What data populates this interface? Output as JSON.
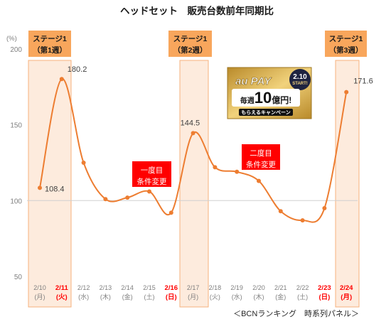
{
  "colors": {
    "series_line": "#ed7d31",
    "stage_box": "#f8a65c",
    "stage_band": "#fdebdd",
    "stage_band_border": "#f6b27c",
    "condition_box": "#ff0000",
    "red_label": "#ff0000",
    "axis_text": "#7f7f7f",
    "reference_line": "#d0d0d0"
  },
  "stages": [
    {
      "label": "ステージ1",
      "week": "（第1週）"
    },
    {
      "label": "ステージ1",
      "week": "（第2週）"
    },
    {
      "label": "ステージ1",
      "week": "（第3週）"
    }
  ],
  "condition_changes": [
    {
      "order": "一度目",
      "text": "条件変更"
    },
    {
      "order": "二度目",
      "text": "条件変更"
    }
  ],
  "promo_banner": {
    "brand": "au PAY",
    "start_date": "2.10",
    "start_text": "START!",
    "headline_prefix": "毎週",
    "headline_number": "10",
    "headline_suffix": "億円!",
    "tagline": "もらえるキャンペーン"
  },
  "source_note": "＜BCNランキング　時系列パネル＞",
  "chart_data": {
    "type": "line",
    "title": "ヘッドセット　販売台数前年同期比",
    "ylabel": "(%)",
    "ylim": [
      50,
      200
    ],
    "yticks": [
      200,
      150,
      100,
      50
    ],
    "reference_line": 100,
    "grid": false,
    "categories": [
      "2/10",
      "2/11",
      "2/12",
      "2/13",
      "2/14",
      "2/15",
      "2/16",
      "2/17",
      "2/18",
      "2/19",
      "2/20",
      "2/21",
      "2/22",
      "2/23",
      "2/24"
    ],
    "weekdays": [
      "(月)",
      "(火)",
      "(水)",
      "(木)",
      "(金)",
      "(土)",
      "(日)",
      "(月)",
      "(火)",
      "(水)",
      "(木)",
      "(金)",
      "(土)",
      "(日)",
      "(月)"
    ],
    "red_label_indices": [
      1,
      6,
      13,
      14
    ],
    "series": [
      {
        "values": [
          108.4,
          180.2,
          125,
          101,
          102,
          106,
          92,
          144.5,
          122,
          119,
          113,
          93,
          87,
          95,
          171.6
        ]
      }
    ],
    "labeled_indices": [
      0,
      1,
      7,
      14
    ]
  }
}
